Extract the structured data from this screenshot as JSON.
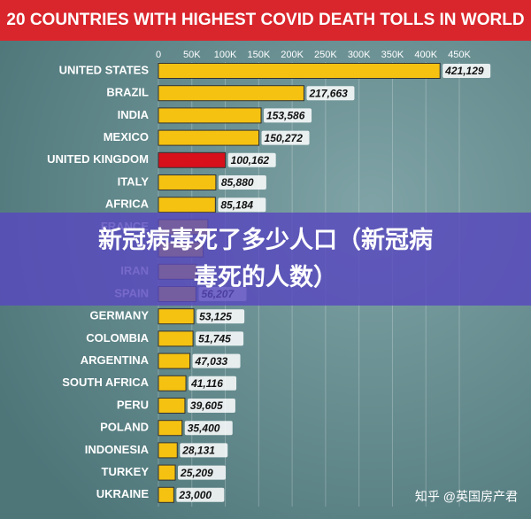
{
  "chart_data": {
    "type": "barh",
    "title": "20 COUNTRIES WITH HIGHEST COVID DEATH TOLLS IN WORLD",
    "categories": [
      "UNITED STATES",
      "BRAZIL",
      "INDIA",
      "MEXICO",
      "UNITED KINGDOM",
      "ITALY",
      "AFRICA",
      "FRANCE",
      null,
      "IRAN",
      "SPAIN",
      "GERMANY",
      "COLOMBIA",
      "ARGENTINA",
      "SOUTH AFRICA",
      "PERU",
      "POLAND",
      "INDONESIA",
      "TURKEY",
      "UKRAINE"
    ],
    "values": [
      421129,
      217663,
      153586,
      150272,
      100162,
      85880,
      85184,
      74000,
      67000,
      57000,
      56207,
      53125,
      51745,
      47033,
      41116,
      39605,
      35400,
      28131,
      25209,
      23000
    ],
    "value_labels": [
      "421,129",
      "217,663",
      "153,586",
      "150,272",
      "100,162",
      "85,880",
      "85,184",
      null,
      null,
      null,
      "56,207",
      "53,125",
      "51,745",
      "47,033",
      "41,116",
      "39,605",
      "35,400",
      "28,131",
      "25,209",
      "23,000"
    ],
    "colors": [
      "#f5c211",
      "#f5c211",
      "#f5c211",
      "#f5c211",
      "#d7101c",
      "#f5c211",
      "#f5c211",
      "#f5c211",
      "#f5c211",
      "#f5c211",
      "#f5c211",
      "#f5c211",
      "#f5c211",
      "#f5c211",
      "#f5c211",
      "#f5c211",
      "#f5c211",
      "#f5c211",
      "#f5c211",
      "#f5c211"
    ],
    "xlim": [
      0,
      450000
    ],
    "xticks": [
      0,
      {
        "value": 50000,
        "label": "50K"
      },
      {
        "value": 100000,
        "label": "100K"
      },
      {
        "value": 150000,
        "label": "150K"
      },
      {
        "value": 200000,
        "label": "200K"
      },
      {
        "value": 250000,
        "label": "250K"
      },
      {
        "value": 300000,
        "label": "300K"
      },
      {
        "value": 350000,
        "label": "350K"
      },
      {
        "value": 400000,
        "label": "400K"
      },
      {
        "value": 450000,
        "label": "450K"
      }
    ],
    "grid": true
  },
  "overlay_text": [
    "新冠病毒死了多少人口（新冠病",
    "毒死的人数）"
  ],
  "watermark": "知乎 @英国房产君"
}
